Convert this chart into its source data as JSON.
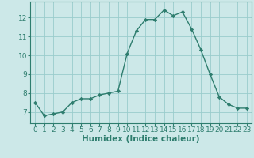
{
  "x": [
    0,
    1,
    2,
    3,
    4,
    5,
    6,
    7,
    8,
    9,
    10,
    11,
    12,
    13,
    14,
    15,
    16,
    17,
    18,
    19,
    20,
    21,
    22,
    23
  ],
  "y": [
    7.5,
    6.8,
    6.9,
    7.0,
    7.5,
    7.7,
    7.7,
    7.9,
    8.0,
    8.1,
    10.1,
    11.3,
    11.9,
    11.9,
    12.4,
    12.1,
    12.3,
    11.4,
    10.3,
    9.0,
    7.8,
    7.4,
    7.2,
    7.2
  ],
  "line_color": "#2e7d6e",
  "marker": "D",
  "marker_size": 2.2,
  "line_width": 1.0,
  "bg_color": "#cce8e8",
  "grid_color": "#99cccc",
  "xlabel": "Humidex (Indice chaleur)",
  "xlabel_fontsize": 7.5,
  "tick_fontsize": 6.5,
  "xlim": [
    -0.5,
    23.5
  ],
  "ylim": [
    6.4,
    12.85
  ],
  "yticks": [
    7,
    8,
    9,
    10,
    11,
    12
  ],
  "xticks": [
    0,
    1,
    2,
    3,
    4,
    5,
    6,
    7,
    8,
    9,
    10,
    11,
    12,
    13,
    14,
    15,
    16,
    17,
    18,
    19,
    20,
    21,
    22,
    23
  ],
  "spine_color": "#2e7d6e"
}
